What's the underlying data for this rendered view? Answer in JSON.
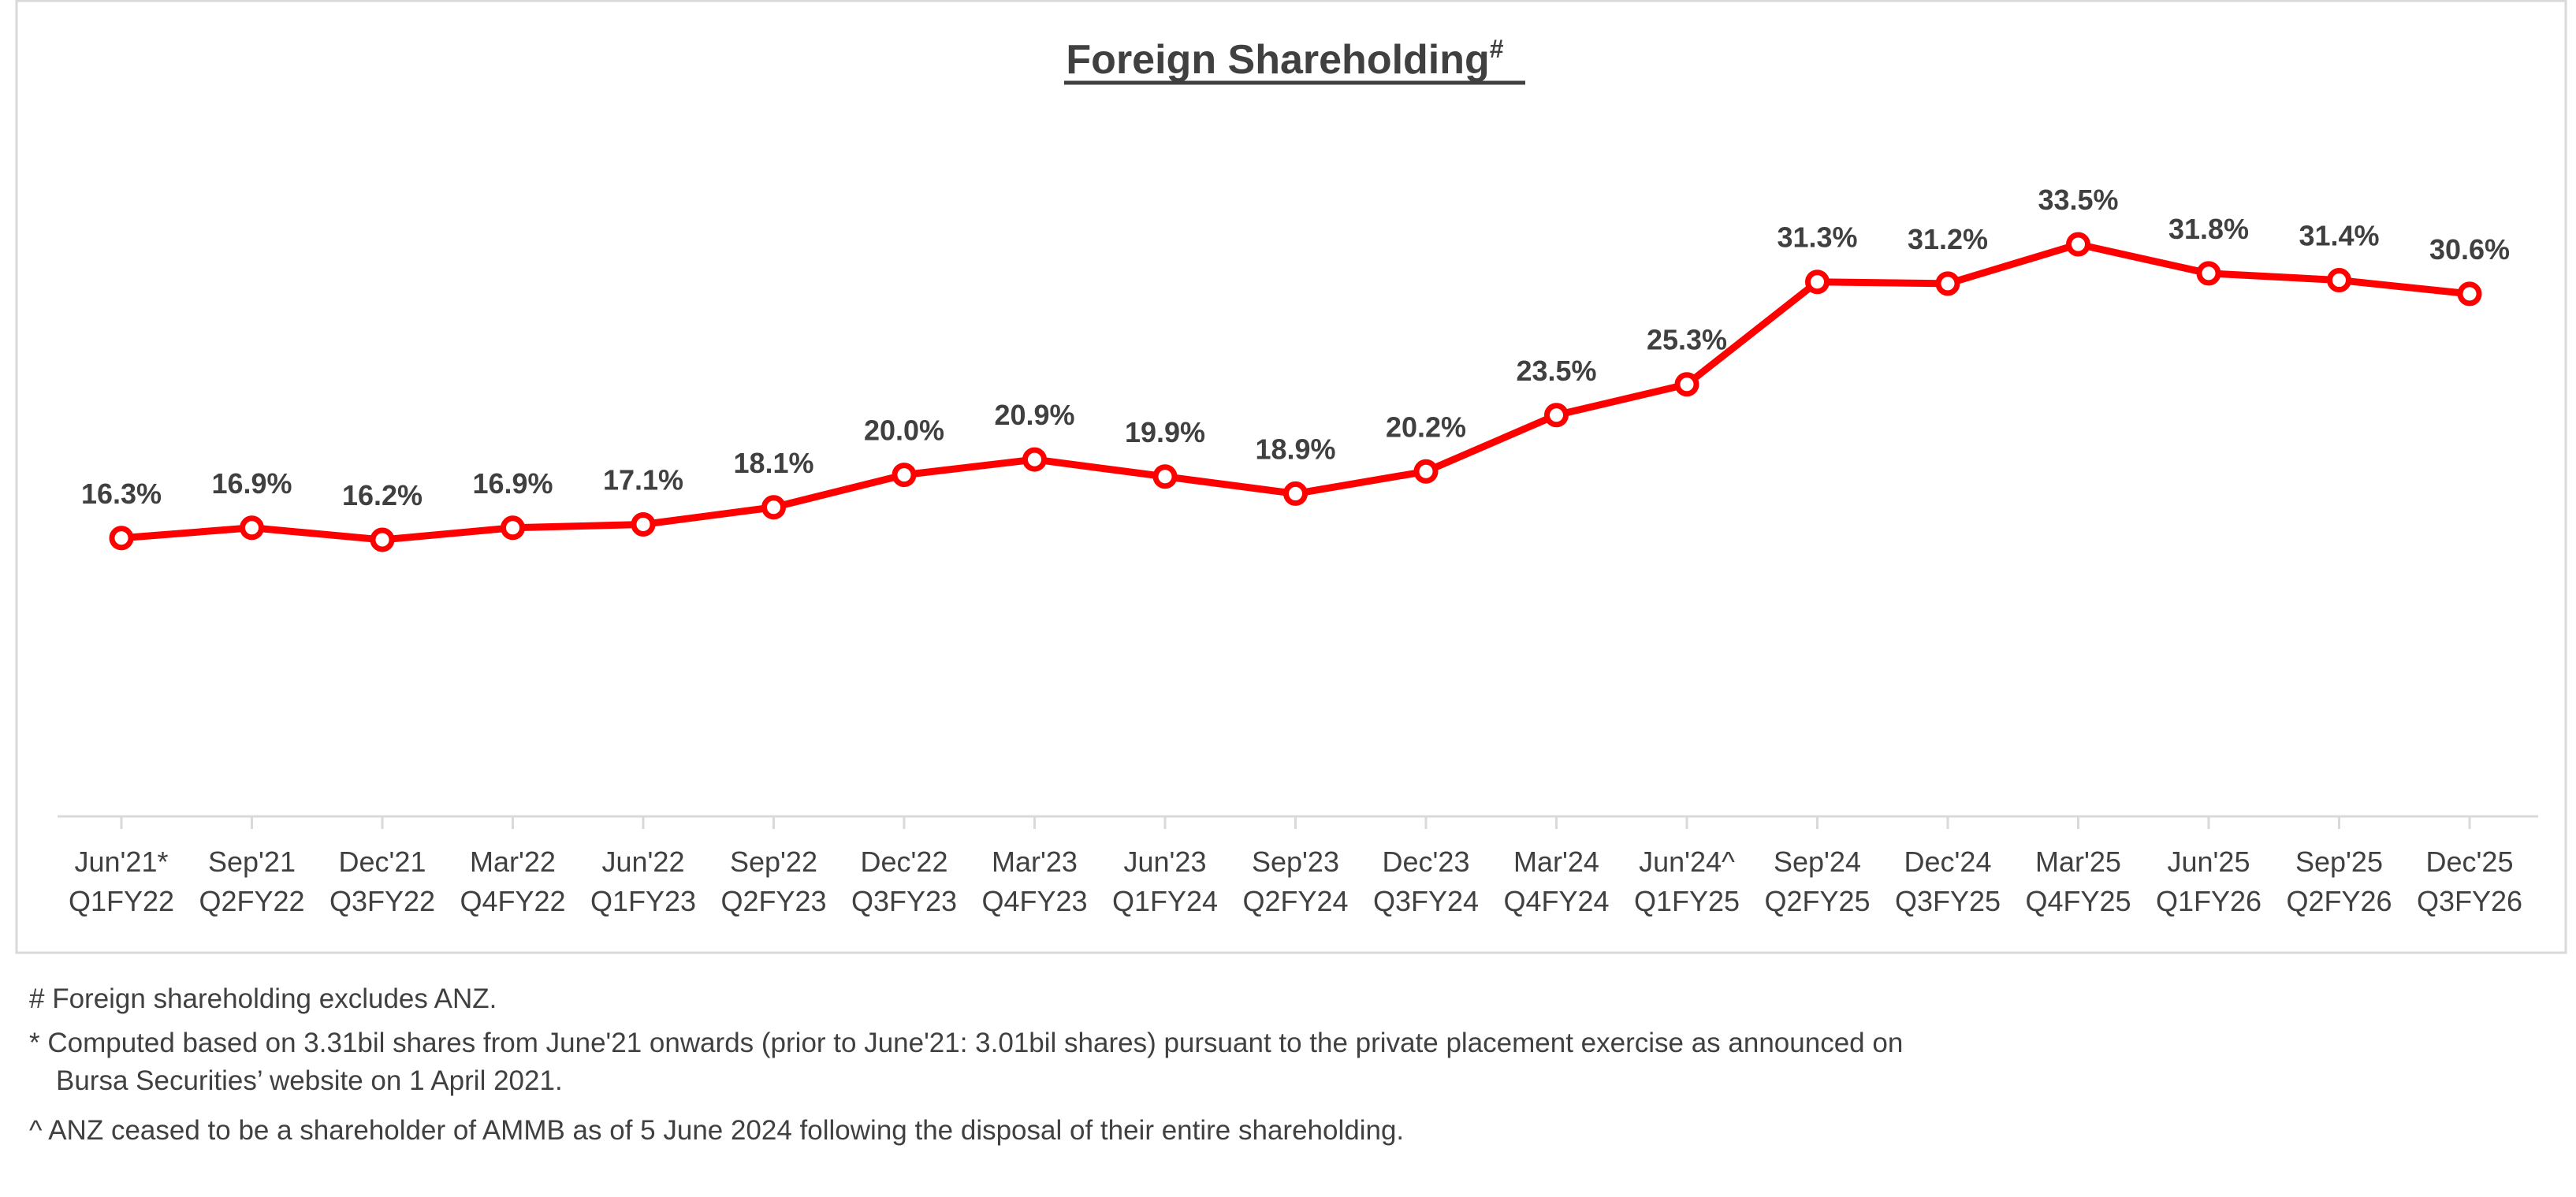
{
  "chart_data": {
    "type": "line",
    "title": "Foreign Shareholding",
    "title_superscript": "#",
    "xlabel": "",
    "ylabel": "",
    "ylim": [
      0,
      45
    ],
    "grid": false,
    "legend": "none",
    "categories": [
      [
        "Jun'21*",
        "Q1FY22"
      ],
      [
        "Sep'21",
        "Q2FY22"
      ],
      [
        "Dec'21",
        "Q3FY22"
      ],
      [
        "Mar'22",
        "Q4FY22"
      ],
      [
        "Jun'22",
        "Q1FY23"
      ],
      [
        "Sep'22",
        "Q2FY23"
      ],
      [
        "Dec'22",
        "Q3FY23"
      ],
      [
        "Mar'23",
        "Q4FY23"
      ],
      [
        "Jun'23",
        "Q1FY24"
      ],
      [
        "Sep'23",
        "Q2FY24"
      ],
      [
        "Dec'23",
        "Q3FY24"
      ],
      [
        "Mar'24",
        "Q4FY24"
      ],
      [
        "Jun'24^",
        "Q1FY25"
      ],
      [
        "Sep'24",
        "Q2FY25"
      ],
      [
        "Dec'24",
        "Q3FY25"
      ],
      [
        "Mar'25",
        "Q4FY25"
      ],
      [
        "Jun'25",
        "Q1FY26"
      ],
      [
        "Sep'25",
        "Q2FY26"
      ],
      [
        "Dec'25",
        "Q3FY26"
      ]
    ],
    "series": [
      {
        "name": "Foreign Shareholding",
        "color": "#FF0000",
        "values": [
          16.3,
          16.9,
          16.2,
          16.9,
          17.1,
          18.1,
          20.0,
          20.9,
          19.9,
          18.9,
          20.2,
          23.5,
          25.3,
          31.3,
          31.2,
          33.5,
          31.8,
          31.4,
          30.6
        ],
        "labels": [
          "16.3%",
          "16.9%",
          "16.2%",
          "16.9%",
          "17.1%",
          "18.1%",
          "20.0%",
          "20.9%",
          "19.9%",
          "18.9%",
          "20.2%",
          "23.5%",
          "25.3%",
          "31.3%",
          "31.2%",
          "33.5%",
          "31.8%",
          "31.4%",
          "30.6%"
        ]
      }
    ]
  },
  "footnotes": [
    "# Foreign shareholding excludes ANZ.",
    "* Computed based on 3.31bil shares from June'21 onwards (prior to June'21: 3.01bil shares) pursuant to the private placement exercise as announced on",
    "Bursa Securities’ website on 1 April 2021.",
    "^ ANZ ceased to be a shareholder of AMMB as of 5 June 2024 following the disposal of their entire shareholding."
  ]
}
